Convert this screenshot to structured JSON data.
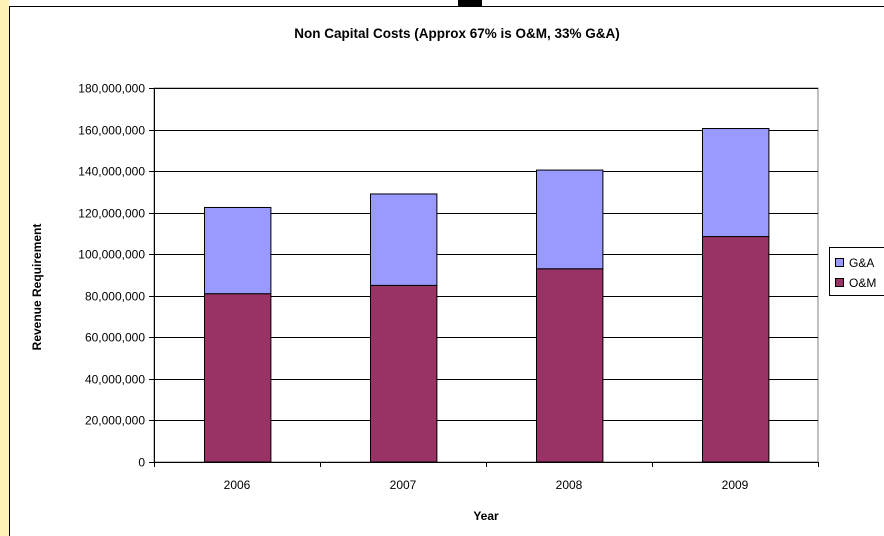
{
  "chart_data": {
    "type": "bar",
    "stacked": true,
    "title": "Non Capital Costs (Approx 67% is O&M, 33% G&A)",
    "xlabel": "Year",
    "ylabel": "Revenue Requirement",
    "categories": [
      "2006",
      "2007",
      "2008",
      "2009"
    ],
    "series": [
      {
        "name": "O&M",
        "color": "#993366",
        "values": [
          81000000,
          85000000,
          93000000,
          108500000
        ]
      },
      {
        "name": "G&A",
        "color": "#9999ff",
        "values": [
          41500000,
          44000000,
          47500000,
          52000000
        ]
      }
    ],
    "ylim": [
      0,
      180000000
    ],
    "yticks": [
      "0",
      "20,000,000",
      "40,000,000",
      "60,000,000",
      "80,000,000",
      "100,000,000",
      "120,000,000",
      "140,000,000",
      "160,000,000",
      "180,000,000"
    ],
    "grid": true,
    "legend_position": "right",
    "legend_order": [
      "G&A",
      "O&M"
    ],
    "plot_background": "#ffffff",
    "grid_color": "#000000"
  }
}
